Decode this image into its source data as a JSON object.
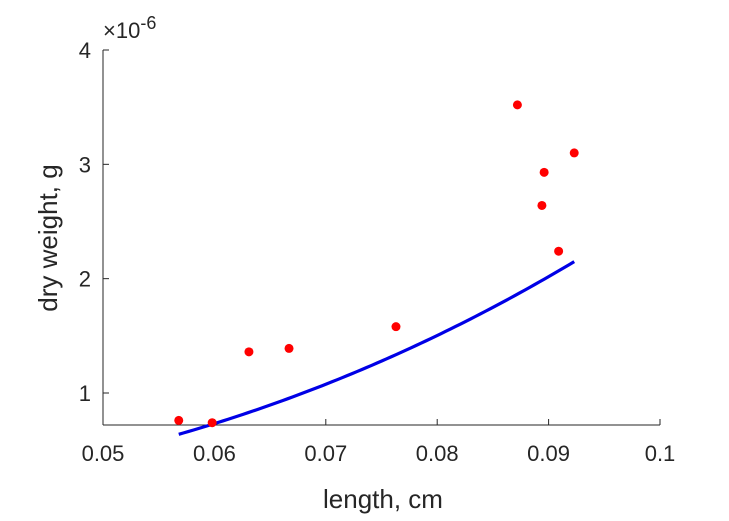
{
  "chart_data": {
    "type": "scatter",
    "xlabel": "length, cm",
    "ylabel": "dry weight, g",
    "y_exponent_label": "×10",
    "y_exponent_power": "-6",
    "xlim": [
      0.05,
      0.1
    ],
    "ylim": [
      0.72,
      4.0
    ],
    "xticks": [
      0.05,
      0.06,
      0.07,
      0.08,
      0.09,
      0.1
    ],
    "xtick_labels": [
      "0.05",
      "0.06",
      "0.07",
      "0.08",
      "0.09",
      "0.1"
    ],
    "yticks": [
      1,
      2,
      3,
      4
    ],
    "ytick_labels": [
      "1",
      "2",
      "3",
      "4"
    ],
    "y_scale_note": "values in units of 1e-6 g",
    "grid": false,
    "series": [
      {
        "kind": "scatter",
        "color": "#ff0000",
        "x": [
          0.0568,
          0.0598,
          0.0631,
          0.0667,
          0.0763,
          0.0872,
          0.0894,
          0.0896,
          0.0909,
          0.0923
        ],
        "y": [
          0.76,
          0.74,
          1.36,
          1.39,
          1.58,
          3.52,
          2.64,
          2.93,
          2.24,
          3.1
        ]
      },
      {
        "kind": "line",
        "color": "#0000e6",
        "fit": {
          "a": 830.28,
          "b": 2.5,
          "x_range": [
            0.0568,
            0.0923
          ]
        }
      }
    ]
  }
}
